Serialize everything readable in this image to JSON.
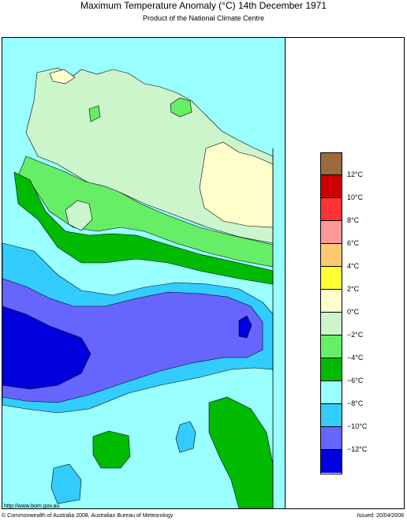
{
  "header": {
    "title": "Maximum Temperature Anomaly (°C)  14th December 1971",
    "subtitle": "Product of the National Climate Centre"
  },
  "legend": {
    "swatches": [
      {
        "color": "#9b6b3b"
      },
      {
        "color": "#cc0000"
      },
      {
        "color": "#ff3333"
      },
      {
        "color": "#ff9999"
      },
      {
        "color": "#ffc873"
      },
      {
        "color": "#ffff33"
      },
      {
        "color": "#ffffcc"
      },
      {
        "color": "#ccf5cc"
      },
      {
        "color": "#66ee66"
      },
      {
        "color": "#00bb00"
      },
      {
        "color": "#99ffff"
      },
      {
        "color": "#33ccff"
      },
      {
        "color": "#6666ff"
      },
      {
        "color": "#0000dd"
      }
    ],
    "labels": [
      "12°C",
      "10°C",
      "8°C",
      "6°C",
      "4°C",
      "2°C",
      "0°C",
      "−2°C",
      "−4°C",
      "−6°C",
      "−8°C",
      "−10°C",
      "−12°C"
    ]
  },
  "footer": {
    "url": "http://www.bom.gov.au",
    "copyright": "© Commonwealth of Australia 2008, Australian Bureau of Meteorology",
    "issued": "Issued: 20/04/2008"
  }
}
